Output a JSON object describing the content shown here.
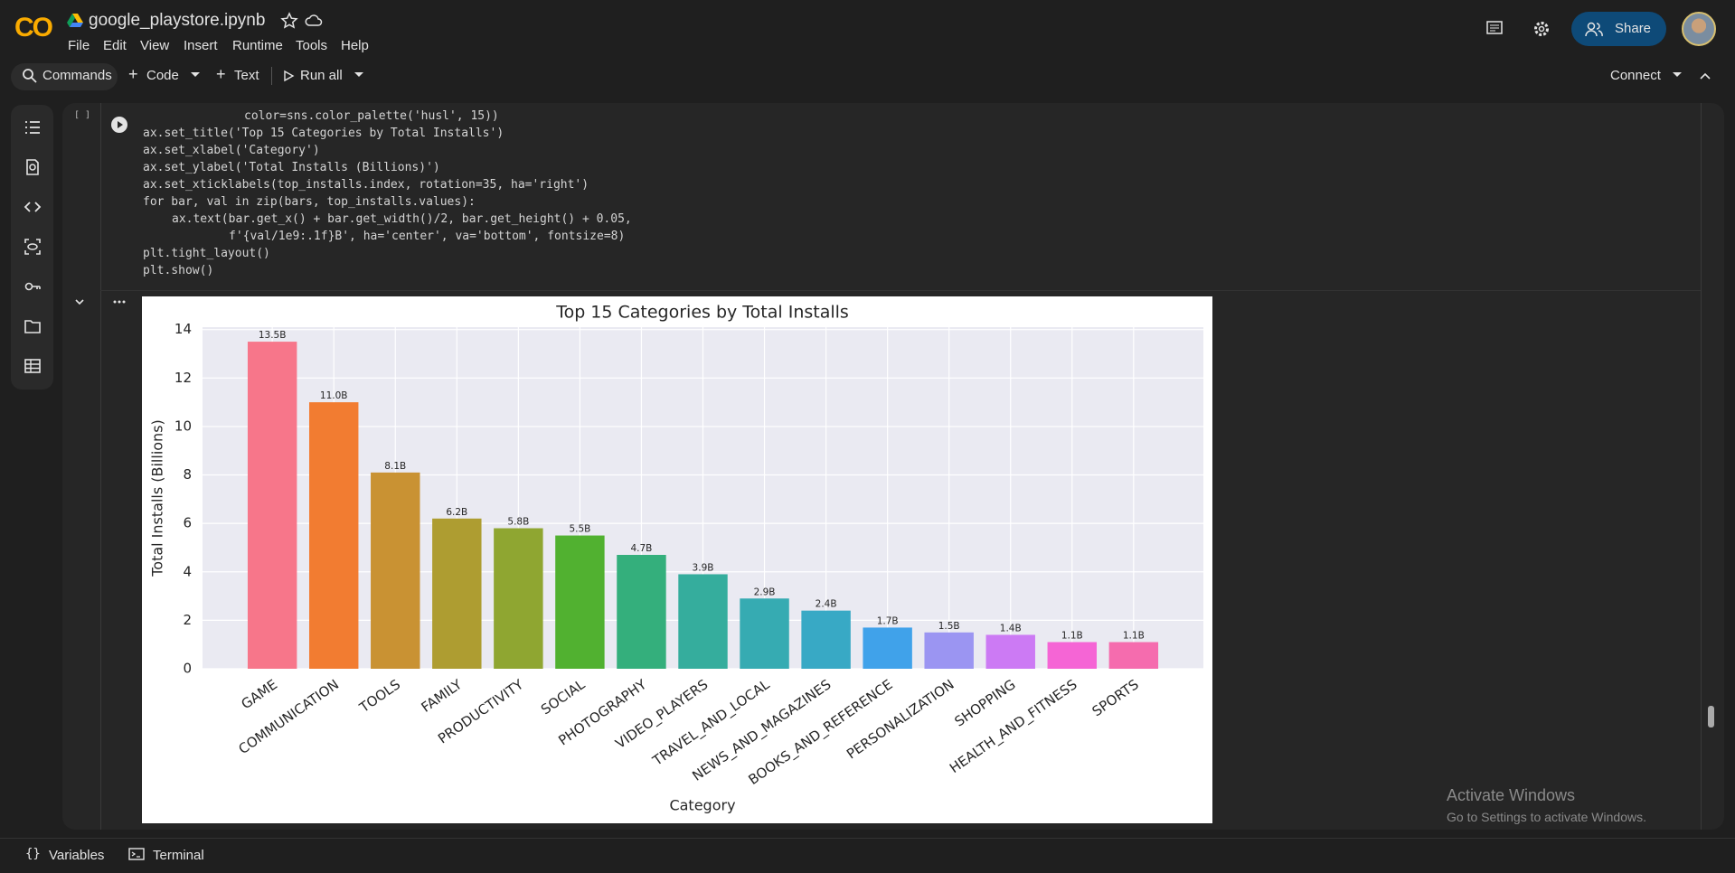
{
  "app": {
    "logo": "CO",
    "file_name": "google_playstore.ipynb",
    "share": "Share"
  },
  "menu": [
    "File",
    "Edit",
    "View",
    "Insert",
    "Runtime",
    "Tools",
    "Help"
  ],
  "toolbar": {
    "commands": "Commands",
    "code": "Code",
    "text": "Text",
    "run_all": "Run all",
    "connect": "Connect"
  },
  "cell": {
    "marker": "[ ]",
    "code": [
      "color=sns.color_palette('husl', 15))",
      "ax.set_title('Top 15 Categories by Total Installs')",
      "ax.set_xlabel('Category')",
      "ax.set_ylabel('Total Installs (Billions)')",
      "ax.set_xticklabels(top_installs.index, rotation=35, ha='right')",
      "for bar, val in zip(bars, top_installs.values):",
      "ax.text(bar.get_x() + bar.get_width()/2, bar.get_height() + 0.05,",
      "f'{val/1e9:.1f}B', ha='center', va='bottom', fontsize=8)",
      "plt.tight_layout()",
      "plt.show()"
    ]
  },
  "footer": {
    "variables": "Variables",
    "terminal": "Terminal"
  },
  "watermark": {
    "title": "Activate Windows",
    "subtitle": "Go to Settings to activate Windows."
  },
  "chart_data": {
    "type": "bar",
    "title": "Top 15 Categories by Total Installs",
    "x_label": "Category",
    "y_label": "Total Installs (Billions)",
    "categories": [
      "GAME",
      "COMMUNICATION",
      "TOOLS",
      "FAMILY",
      "PRODUCTIVITY",
      "SOCIAL",
      "PHOTOGRAPHY",
      "VIDEO_PLAYERS",
      "TRAVEL_AND_LOCAL",
      "NEWS_AND_MAGAZINES",
      "BOOKS_AND_REFERENCE",
      "PERSONALIZATION",
      "SHOPPING",
      "HEALTH_AND_FITNESS",
      "SPORTS"
    ],
    "values": [
      13.5,
      11.0,
      8.1,
      6.2,
      5.8,
      5.5,
      4.7,
      3.9,
      2.9,
      2.4,
      1.7,
      1.5,
      1.4,
      1.1,
      1.1
    ],
    "value_labels": [
      "13.5B",
      "11.0B",
      "8.1B",
      "6.2B",
      "5.8B",
      "5.5B",
      "4.7B",
      "3.9B",
      "2.9B",
      "2.4B",
      "1.7B",
      "1.5B",
      "1.4B",
      "1.1B",
      "1.1B"
    ],
    "colors": [
      "#f7768a",
      "#f27c31",
      "#c99233",
      "#ae9d31",
      "#8fa631",
      "#51b130",
      "#34af7c",
      "#35ad9d",
      "#36abb2",
      "#38a9c5",
      "#40a2ea",
      "#9b95f2",
      "#cc7af4",
      "#f565d5",
      "#f56cae"
    ],
    "ylim": [
      0,
      14.1
    ],
    "yticks": [
      0,
      2,
      4,
      6,
      8,
      10,
      12,
      14
    ],
    "grid": true
  }
}
